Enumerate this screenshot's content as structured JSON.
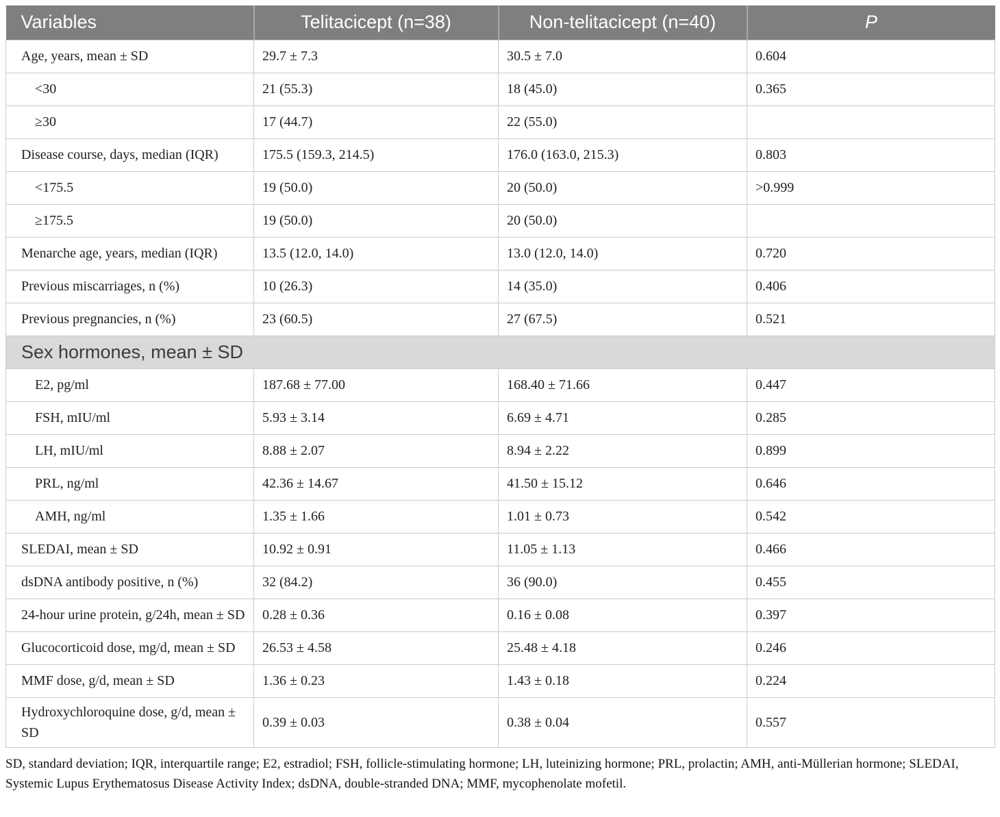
{
  "table": {
    "columns": [
      {
        "label": "Variables"
      },
      {
        "label": "Telitacicept (n=38)"
      },
      {
        "label": "Non-telitacicept (n=40)"
      },
      {
        "label": "P"
      }
    ],
    "rows": [
      {
        "type": "data",
        "indent": false,
        "variable": "Age, years, mean ± SD",
        "telitacicept": "29.7 ± 7.3",
        "non_telitacicept": "30.5 ± 7.0",
        "p": "0.604"
      },
      {
        "type": "data",
        "indent": true,
        "variable": "<30",
        "telitacicept": "21 (55.3)",
        "non_telitacicept": "18 (45.0)",
        "p": "0.365"
      },
      {
        "type": "data",
        "indent": true,
        "variable": "≥30",
        "telitacicept": "17 (44.7)",
        "non_telitacicept": "22 (55.0)",
        "p": ""
      },
      {
        "type": "data",
        "indent": false,
        "variable": "Disease course, days, median (IQR)",
        "telitacicept": "175.5 (159.3, 214.5)",
        "non_telitacicept": "176.0 (163.0, 215.3)",
        "p": "0.803"
      },
      {
        "type": "data",
        "indent": true,
        "variable": "<175.5",
        "telitacicept": "19 (50.0)",
        "non_telitacicept": "20 (50.0)",
        "p": ">0.999"
      },
      {
        "type": "data",
        "indent": true,
        "variable": "≥175.5",
        "telitacicept": "19 (50.0)",
        "non_telitacicept": "20 (50.0)",
        "p": ""
      },
      {
        "type": "data",
        "indent": false,
        "variable": "Menarche age, years, median (IQR)",
        "telitacicept": "13.5 (12.0, 14.0)",
        "non_telitacicept": "13.0 (12.0, 14.0)",
        "p": "0.720"
      },
      {
        "type": "data",
        "indent": false,
        "variable": "Previous miscarriages, n (%)",
        "telitacicept": "10 (26.3)",
        "non_telitacicept": "14 (35.0)",
        "p": "0.406"
      },
      {
        "type": "data",
        "indent": false,
        "variable": "Previous pregnancies, n (%)",
        "telitacicept": "23 (60.5)",
        "non_telitacicept": "27 (67.5)",
        "p": "0.521"
      },
      {
        "type": "section",
        "label": "Sex hormones, mean ± SD"
      },
      {
        "type": "data",
        "indent": true,
        "variable": "E2, pg/ml",
        "telitacicept": "187.68 ± 77.00",
        "non_telitacicept": "168.40 ± 71.66",
        "p": "0.447"
      },
      {
        "type": "data",
        "indent": true,
        "variable": "FSH, mIU/ml",
        "telitacicept": "5.93 ± 3.14",
        "non_telitacicept": "6.69 ± 4.71",
        "p": "0.285"
      },
      {
        "type": "data",
        "indent": true,
        "variable": "LH, mIU/ml",
        "telitacicept": "8.88 ± 2.07",
        "non_telitacicept": "8.94 ± 2.22",
        "p": "0.899"
      },
      {
        "type": "data",
        "indent": true,
        "variable": "PRL, ng/ml",
        "telitacicept": "42.36 ± 14.67",
        "non_telitacicept": "41.50 ± 15.12",
        "p": "0.646"
      },
      {
        "type": "data",
        "indent": true,
        "variable": "AMH, ng/ml",
        "telitacicept": "1.35 ± 1.66",
        "non_telitacicept": "1.01 ± 0.73",
        "p": "0.542"
      },
      {
        "type": "data",
        "indent": false,
        "variable": "SLEDAI, mean ± SD",
        "telitacicept": "10.92 ± 0.91",
        "non_telitacicept": "11.05 ± 1.13",
        "p": "0.466"
      },
      {
        "type": "data",
        "indent": false,
        "variable": "dsDNA antibody positive, n (%)",
        "telitacicept": "32 (84.2)",
        "non_telitacicept": "36 (90.0)",
        "p": "0.455"
      },
      {
        "type": "data",
        "indent": false,
        "variable": "24-hour urine protein, g/24h, mean ± SD",
        "telitacicept": "0.28 ± 0.36",
        "non_telitacicept": "0.16 ± 0.08",
        "p": "0.397"
      },
      {
        "type": "data",
        "indent": false,
        "variable": "Glucocorticoid dose, mg/d, mean ± SD",
        "telitacicept": "26.53 ± 4.58",
        "non_telitacicept": "25.48 ± 4.18",
        "p": "0.246"
      },
      {
        "type": "data",
        "indent": false,
        "variable": "MMF dose, g/d, mean ± SD",
        "telitacicept": "1.36 ± 0.23",
        "non_telitacicept": "1.43 ± 0.18",
        "p": "0.224"
      },
      {
        "type": "data",
        "indent": false,
        "variable": "Hydroxychloroquine dose, g/d, mean ± SD",
        "telitacicept": "0.39 ± 0.03",
        "non_telitacicept": "0.38 ± 0.04",
        "p": "0.557"
      }
    ],
    "footnote": "SD, standard deviation; IQR, interquartile range; E2, estradiol; FSH, follicle-stimulating hormone; LH, luteinizing hormone; PRL, prolactin; AMH, anti-Müllerian hormone; SLEDAI, Systemic Lupus Erythematosus Disease Activity Index; dsDNA, double-stranded DNA; MMF, mycophenolate mofetil."
  },
  "colors": {
    "header_bg": "#7f7f7f",
    "header_text": "#ffffff",
    "section_bg": "#d9d9d9",
    "section_text": "#3c3c3c",
    "row_border": "#cbcbcb",
    "body_text": "#212121"
  }
}
